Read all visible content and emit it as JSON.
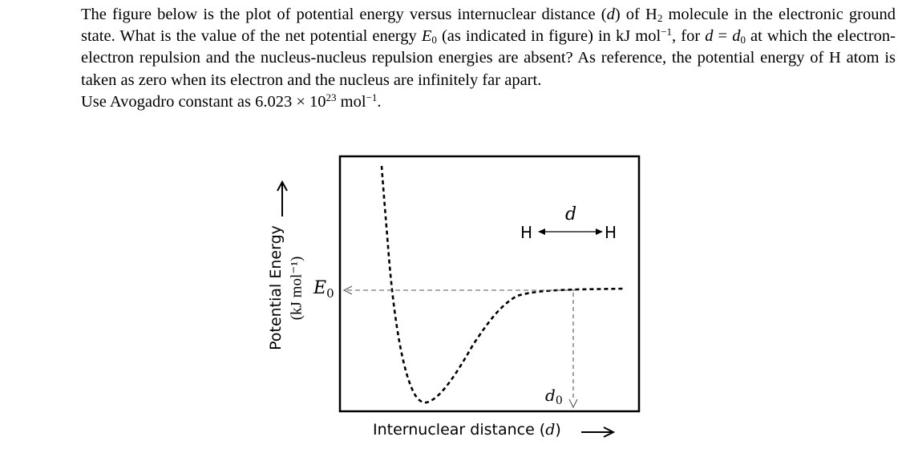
{
  "question": {
    "s1": "The figure below is the plot of potential energy versus internuclear distance (",
    "s1_d": "d",
    "s2": ") of H",
    "s2_sub": "2",
    "s3": " molecule in the electronic ground state. What is the value of the net potential energy ",
    "s3_E": "E",
    "s3_sub": "0",
    "s4": " (as indicated in figure) in kJ mol",
    "s4_sup": "−1",
    "s5": ", for ",
    "s5_d": "d",
    "s6": " = ",
    "s6_d": "d",
    "s6_sub": "0",
    "s7": " at which the electron-electron repulsion and the nucleus-nucleus repulsion energies are absent? As reference, the potential energy of H atom is taken as zero when its electron and the nucleus are infinitely far apart.",
    "p2a": "Use Avogadro constant as 6.023 × 10",
    "p2_sup": "23",
    "p2b": " mol",
    "p2_sup2": "−1",
    "p2c": "."
  },
  "figure": {
    "ylabel": "Potential Energy",
    "yunit": "(kJ mol⁻¹)",
    "xlabel": "Internuclear distance (",
    "xlabel_d": "d",
    "xlabel_end": ")",
    "e0_label": "E",
    "e0_sub": "0",
    "d0_label": "d",
    "d0_sub": "0",
    "d_label": "d",
    "h_left": "H",
    "h_right": "H"
  }
}
